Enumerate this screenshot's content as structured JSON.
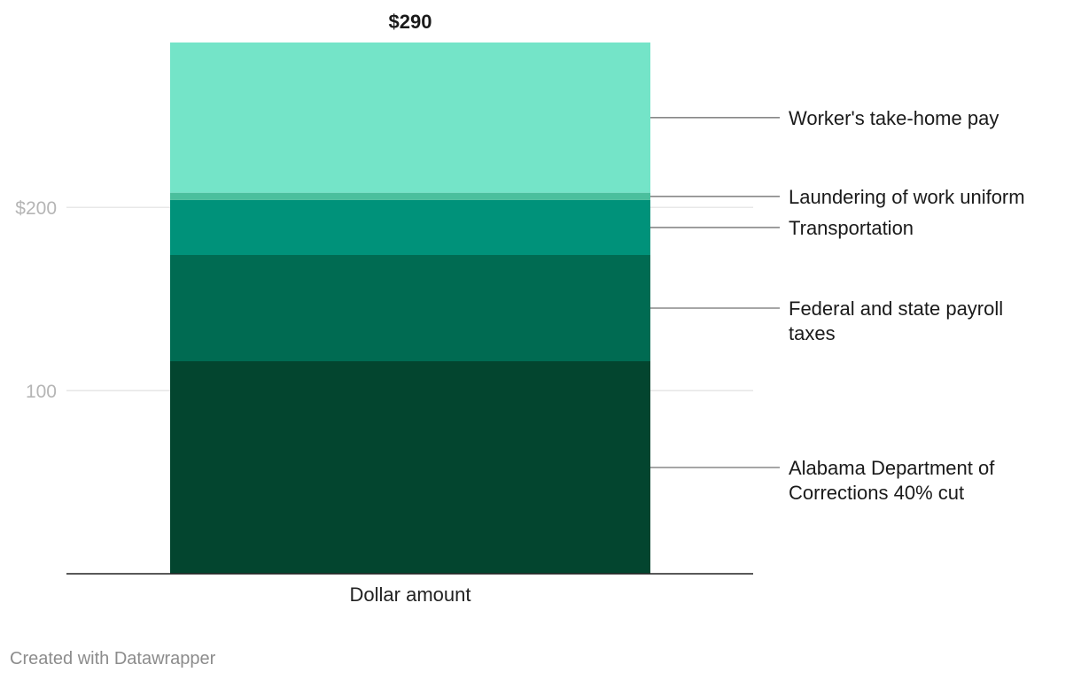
{
  "chart_data": {
    "type": "bar",
    "stacked": true,
    "categories": [
      "Dollar amount"
    ],
    "total_label": "$290",
    "ylim": [
      0,
      290
    ],
    "yticks": [
      {
        "value": 100,
        "label": "100"
      },
      {
        "value": 200,
        "label": "$200"
      }
    ],
    "series": [
      {
        "name": "Alabama Department of Corrections 40% cut",
        "value": 116,
        "color": "#03452f",
        "label_lines": [
          "Alabama Department of",
          "Corrections 40% cut"
        ]
      },
      {
        "name": "Federal and state payroll taxes",
        "value": 58,
        "color": "#006b52",
        "label_lines": [
          "Federal and state payroll",
          "taxes"
        ]
      },
      {
        "name": "Transportation",
        "value": 30,
        "color": "#00927a",
        "label_lines": [
          "Transportation"
        ]
      },
      {
        "name": "Laundering of work uniform",
        "value": 4,
        "color": "#4bbf9d",
        "label_lines": [
          "Laundering of work uniform"
        ]
      },
      {
        "name": "Worker's take-home pay",
        "value": 82,
        "color": "#74e4c8",
        "label_lines": [
          "Worker's take-home pay"
        ]
      }
    ],
    "grid": true
  },
  "footer": "Created with Datawrapper"
}
